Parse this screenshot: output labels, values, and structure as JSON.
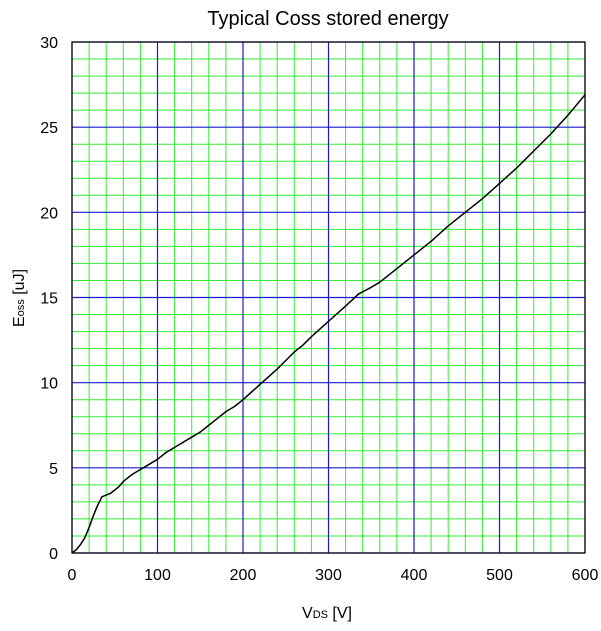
{
  "chart_data": {
    "type": "line",
    "title": "Typical Coss stored energy",
    "xlabel": {
      "main": "V",
      "sub": "DS",
      "unit": " [V]"
    },
    "ylabel": {
      "main": "E",
      "sub": "oss",
      "unit": " [uJ]"
    },
    "xlim": [
      0,
      600
    ],
    "ylim": [
      0,
      30
    ],
    "x_ticks": [
      0,
      100,
      200,
      300,
      400,
      500,
      600
    ],
    "y_ticks": [
      0,
      5,
      10,
      15,
      20,
      25,
      30
    ],
    "x_tick_labels": [
      "0",
      "100",
      "200",
      "300",
      "400",
      "500",
      "600"
    ],
    "y_tick_labels": [
      "0",
      "5",
      "10",
      "15",
      "20",
      "25",
      "30"
    ],
    "minor_x_step": 20,
    "minor_y_step": 1,
    "grid": true,
    "colors": {
      "major_grid": "#1a1acc",
      "minor_grid": "#33ee33",
      "line": "#000000",
      "frame": "#000000"
    },
    "series": [
      {
        "x": [
          0,
          5,
          10,
          15,
          20,
          25,
          30,
          35,
          40,
          45,
          50,
          55,
          60,
          70,
          80,
          90,
          100,
          110,
          120,
          130,
          140,
          150,
          160,
          170,
          180,
          190,
          200,
          220,
          240,
          250,
          260,
          270,
          280,
          300,
          320,
          335,
          350,
          360,
          380,
          400,
          420,
          440,
          460,
          480,
          500,
          520,
          540,
          560,
          580,
          600
        ],
        "y": [
          0.0,
          0.2,
          0.5,
          0.9,
          1.5,
          2.2,
          2.8,
          3.3,
          3.4,
          3.5,
          3.7,
          3.9,
          4.2,
          4.6,
          4.9,
          5.2,
          5.5,
          5.9,
          6.2,
          6.5,
          6.8,
          7.1,
          7.5,
          7.9,
          8.3,
          8.6,
          9.0,
          9.9,
          10.8,
          11.3,
          11.8,
          12.2,
          12.7,
          13.6,
          14.5,
          15.2,
          15.6,
          15.9,
          16.7,
          17.5,
          18.3,
          19.2,
          20.0,
          20.8,
          21.7,
          22.6,
          23.6,
          24.6,
          25.7,
          26.9
        ]
      }
    ]
  }
}
